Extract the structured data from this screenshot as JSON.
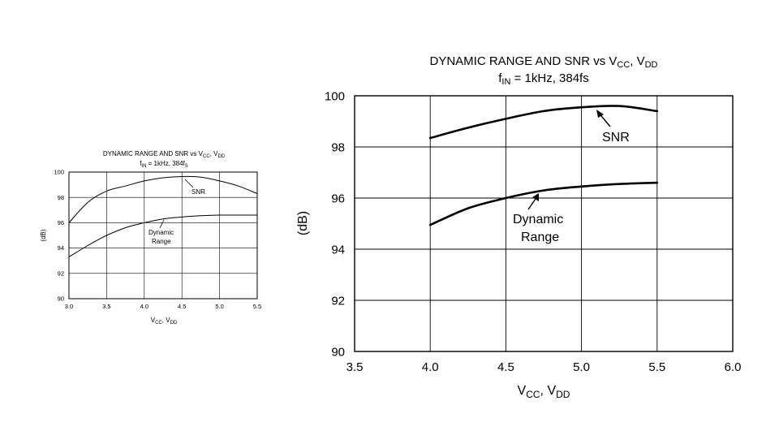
{
  "colors": {
    "line": "#000000",
    "grid": "#000000",
    "background": "#ffffff"
  },
  "chart_data": [
    {
      "type": "line",
      "title_main": "DYNAMIC RANGE AND SNR vs V",
      "title_sub1": "CC",
      "title_sep": ", V",
      "title_sub2": "DD",
      "subtitle_main": "f",
      "subtitle_sub": "IN",
      "subtitle_rest": " = 1kHz, 384f",
      "subtitle_sub2": "S",
      "xlabel_main": "V",
      "xlabel_sub1": "CC",
      "xlabel_sep": ", V",
      "xlabel_sub2": "DD",
      "ylabel": "(dB)",
      "xlim": [
        3.0,
        5.5
      ],
      "ylim": [
        90,
        100
      ],
      "x_ticks": [
        "3.0",
        "3.5",
        "4.0",
        "4.5",
        "5.0",
        "5.5"
      ],
      "y_ticks": [
        "90",
        "92",
        "94",
        "96",
        "98",
        "100"
      ],
      "grid": true,
      "annotations": [
        {
          "text": "SNR"
        },
        {
          "text": "Dynamic"
        },
        {
          "text": "Range"
        }
      ],
      "series": [
        {
          "name": "SNR",
          "x": [
            3.0,
            3.25,
            3.5,
            3.75,
            4.0,
            4.25,
            4.5,
            4.75,
            5.0,
            5.25,
            5.5
          ],
          "y": [
            96.0,
            97.6,
            98.5,
            98.9,
            99.3,
            99.55,
            99.65,
            99.6,
            99.3,
            98.9,
            98.3
          ]
        },
        {
          "name": "Dynamic Range",
          "x": [
            3.0,
            3.25,
            3.5,
            3.75,
            4.0,
            4.25,
            4.5,
            4.75,
            5.0,
            5.25,
            5.5
          ],
          "y": [
            93.3,
            94.2,
            95.0,
            95.6,
            96.0,
            96.3,
            96.45,
            96.55,
            96.6,
            96.6,
            96.6
          ]
        }
      ]
    },
    {
      "type": "line",
      "title_main": "DYNAMIC RANGE AND SNR vs V",
      "title_sub1": "CC",
      "title_sep": ", V",
      "title_sub2": "DD",
      "subtitle_main": "f",
      "subtitle_sub": "IN",
      "subtitle_rest": " = 1kHz, 384fs",
      "xlabel_main": "V",
      "xlabel_sub1": "CC",
      "xlabel_sep": ", V",
      "xlabel_sub2": "DD",
      "ylabel": "(dB)",
      "xlim": [
        3.5,
        6.0
      ],
      "ylim": [
        90,
        100
      ],
      "x_ticks": [
        "3.5",
        "4.0",
        "4.5",
        "5.0",
        "5.5",
        "6.0"
      ],
      "y_ticks": [
        "90",
        "92",
        "94",
        "96",
        "98",
        "100"
      ],
      "grid": true,
      "annotations": [
        {
          "text": "SNR"
        },
        {
          "text": "Dynamic"
        },
        {
          "text": "Range"
        }
      ],
      "series": [
        {
          "name": "SNR",
          "x": [
            4.0,
            4.25,
            4.5,
            4.75,
            5.0,
            5.25,
            5.5
          ],
          "y": [
            98.35,
            98.75,
            99.1,
            99.4,
            99.55,
            99.6,
            99.4
          ]
        },
        {
          "name": "Dynamic Range",
          "x": [
            4.0,
            4.25,
            4.5,
            4.75,
            5.0,
            5.25,
            5.5
          ],
          "y": [
            94.95,
            95.6,
            96.0,
            96.3,
            96.45,
            96.55,
            96.6
          ]
        }
      ]
    }
  ]
}
